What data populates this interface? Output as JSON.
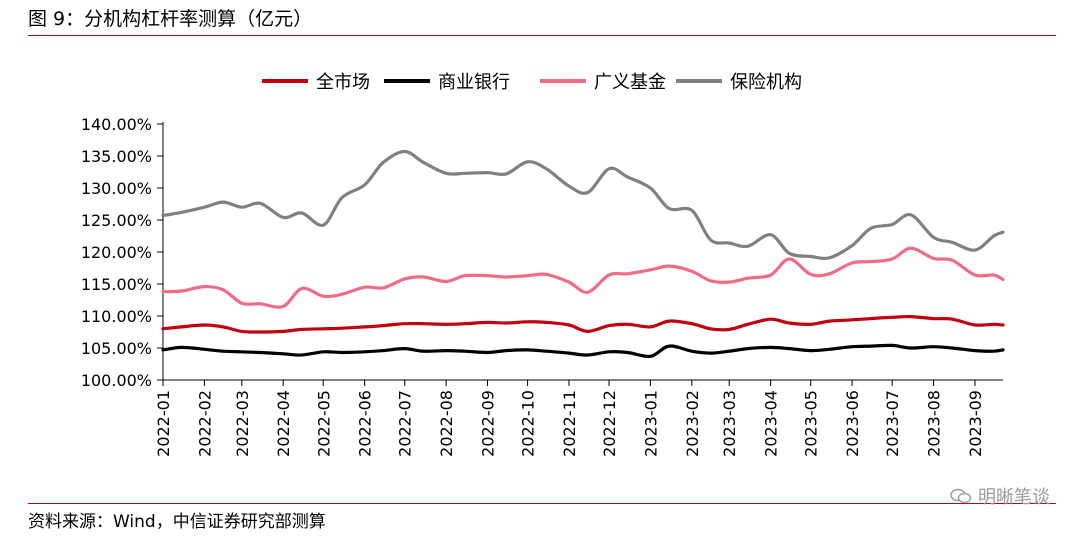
{
  "figure": {
    "title": "图 9：分机构杠杆率测算（亿元）",
    "source": "资料来源：Wind，中信证券研究部测算",
    "watermark": "明晰笔谈",
    "watermark_icon": "wechat-icon"
  },
  "chart_data": {
    "type": "line",
    "title": "",
    "xlabel": "",
    "ylabel": "",
    "ylim": [
      100,
      140
    ],
    "y_ticks": [
      "100.00%",
      "105.00%",
      "110.00%",
      "115.00%",
      "120.00%",
      "125.00%",
      "130.00%",
      "135.00%",
      "140.00%"
    ],
    "x_ticks": [
      "2022-01",
      "2022-02",
      "2022-03",
      "2022-04",
      "2022-05",
      "2022-06",
      "2022-07",
      "2022-08",
      "2022-09",
      "2022-10",
      "2022-11",
      "2022-12",
      "2023-01",
      "2023-02",
      "2023-03",
      "2023-04",
      "2023-05",
      "2023-06",
      "2023-07",
      "2023-08",
      "2023-09"
    ],
    "grid": false,
    "legend_position": "top",
    "x": [
      "2022-01-01",
      "2022-01-15",
      "2022-02-01",
      "2022-02-15",
      "2022-03-01",
      "2022-03-15",
      "2022-04-01",
      "2022-04-15",
      "2022-05-01",
      "2022-05-15",
      "2022-06-01",
      "2022-06-15",
      "2022-07-01",
      "2022-07-15",
      "2022-08-01",
      "2022-08-15",
      "2022-09-01",
      "2022-09-15",
      "2022-10-01",
      "2022-10-15",
      "2022-11-01",
      "2022-11-15",
      "2022-12-01",
      "2022-12-15",
      "2023-01-01",
      "2023-01-15",
      "2023-02-01",
      "2023-02-15",
      "2023-03-01",
      "2023-03-15",
      "2023-04-01",
      "2023-04-15",
      "2023-05-01",
      "2023-05-15",
      "2023-06-01",
      "2023-06-15",
      "2023-07-01",
      "2023-07-15",
      "2023-08-01",
      "2023-08-15",
      "2023-09-01",
      "2023-09-15",
      "2023-09-22"
    ],
    "series": [
      {
        "name": "全市场",
        "color": "#c0000f",
        "values": [
          108.0,
          108.3,
          108.6,
          108.3,
          107.6,
          107.5,
          107.6,
          107.9,
          108.0,
          108.1,
          108.3,
          108.5,
          108.8,
          108.8,
          108.7,
          108.8,
          109.0,
          108.9,
          109.1,
          109.0,
          108.6,
          107.6,
          108.5,
          108.7,
          108.3,
          109.2,
          108.8,
          108.0,
          107.9,
          108.7,
          109.5,
          108.9,
          108.7,
          109.2,
          109.4,
          109.6,
          109.8,
          109.9,
          109.6,
          109.5,
          108.6,
          108.7,
          108.6
        ]
      },
      {
        "name": "商业银行",
        "color": "#000000",
        "values": [
          104.7,
          105.1,
          104.8,
          104.5,
          104.4,
          104.3,
          104.1,
          103.9,
          104.4,
          104.3,
          104.4,
          104.6,
          104.9,
          104.5,
          104.6,
          104.5,
          104.3,
          104.6,
          104.7,
          104.5,
          104.2,
          103.9,
          104.4,
          104.3,
          103.7,
          105.3,
          104.5,
          104.2,
          104.5,
          104.9,
          105.1,
          104.9,
          104.6,
          104.8,
          105.2,
          105.3,
          105.4,
          105.0,
          105.2,
          105.0,
          104.6,
          104.5,
          104.7
        ]
      },
      {
        "name": "广义基金",
        "color": "#f26b84",
        "values": [
          113.8,
          113.9,
          114.6,
          114.1,
          112.0,
          111.9,
          111.5,
          114.3,
          113.1,
          113.4,
          114.5,
          114.4,
          115.8,
          116.1,
          115.4,
          116.3,
          116.3,
          116.1,
          116.3,
          116.5,
          115.3,
          113.7,
          116.4,
          116.6,
          117.2,
          117.8,
          117.0,
          115.5,
          115.3,
          115.9,
          116.4,
          118.9,
          116.5,
          116.6,
          118.3,
          118.5,
          118.9,
          120.6,
          119.0,
          118.7,
          116.4,
          116.4,
          115.7
        ]
      },
      {
        "name": "保险机构",
        "color": "#808080",
        "values": [
          125.7,
          126.2,
          127.0,
          127.8,
          127.0,
          127.6,
          125.4,
          126.1,
          124.2,
          128.5,
          130.5,
          134.0,
          135.7,
          134.0,
          132.3,
          132.3,
          132.4,
          132.2,
          134.1,
          133.0,
          130.3,
          129.3,
          133.0,
          131.7,
          130.0,
          126.8,
          126.5,
          121.9,
          121.4,
          120.9,
          122.7,
          119.8,
          119.3,
          119.1,
          121.0,
          123.7,
          124.3,
          125.8,
          122.3,
          121.5,
          120.3,
          122.5,
          123.1
        ]
      }
    ]
  }
}
